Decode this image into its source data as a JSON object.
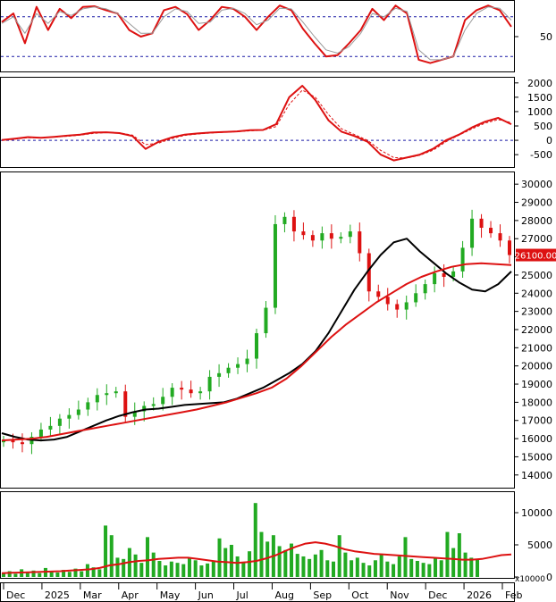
{
  "chart_data": {
    "type": "line",
    "panels": [
      {
        "id": "stochastic",
        "type": "line",
        "yticks": [
          "50"
        ],
        "dashed_levels": [
          80,
          20
        ],
        "ylim": [
          0,
          100
        ],
        "series": [
          {
            "color": "#dd1111",
            "values": [
              72,
              85,
              40,
              95,
              60,
              92,
              78,
              95,
              96,
              90,
              85,
              60,
              50,
              55,
              90,
              95,
              84,
              60,
              75,
              95,
              92,
              80,
              60,
              80,
              97,
              90,
              62,
              40,
              20,
              22,
              40,
              60,
              92,
              75,
              97,
              85,
              15,
              10,
              15,
              20,
              75,
              90,
              97,
              90,
              65
            ]
          },
          {
            "color": "#999999",
            "values": [
              70,
              80,
              55,
              85,
              70,
              88,
              82,
              92,
              95,
              92,
              85,
              70,
              55,
              55,
              80,
              92,
              88,
              70,
              72,
              90,
              93,
              85,
              68,
              75,
              93,
              92,
              72,
              50,
              30,
              25,
              35,
              55,
              85,
              80,
              93,
              88,
              30,
              15,
              15,
              20,
              60,
              85,
              95,
              93,
              75
            ]
          }
        ]
      },
      {
        "id": "macd",
        "type": "line",
        "yticks": [
          "2000",
          "1500",
          "1000",
          "500",
          "0",
          "-500"
        ],
        "ylim": [
          -900,
          2150
        ],
        "zero_line": 0,
        "series": [
          {
            "color": "#dd1111",
            "values": [
              10,
              60,
              110,
              90,
              120,
              160,
              200,
              270,
              280,
              250,
              150,
              -300,
              -50,
              100,
              200,
              240,
              270,
              290,
              310,
              350,
              360,
              560,
              1500,
              1900,
              1400,
              700,
              300,
              150,
              -50,
              -500,
              -700,
              -600,
              -500,
              -300,
              0,
              200,
              450,
              650,
              780,
              560
            ]
          },
          {
            "color": "#dd1111",
            "dashed": true,
            "values": [
              0,
              40,
              90,
              90,
              110,
              140,
              180,
              240,
              270,
              260,
              180,
              -150,
              -100,
              60,
              170,
              220,
              255,
              280,
              300,
              330,
              350,
              480,
              1250,
              1750,
              1500,
              900,
              400,
              200,
              0,
              -350,
              -600,
              -620,
              -520,
              -350,
              -50,
              180,
              400,
              600,
              720,
              620
            ]
          }
        ]
      },
      {
        "id": "price",
        "type": "bar",
        "yticks": [
          "30000",
          "29000",
          "28000",
          "27000",
          "26000",
          "25000",
          "24000",
          "23000",
          "22000",
          "21000",
          "20000",
          "19000",
          "18000",
          "17000",
          "16000",
          "15000",
          "14000"
        ],
        "ylim": [
          13400,
          30500
        ],
        "last_price_label": "26100.00",
        "x": [
          0,
          10,
          20,
          30,
          40,
          50,
          60,
          70,
          80,
          90,
          100,
          110,
          120,
          130,
          140,
          150,
          160,
          170,
          180,
          190,
          200,
          210,
          220,
          230,
          240,
          250,
          260,
          270,
          280,
          290,
          300,
          310,
          320,
          330,
          340,
          350,
          360,
          370,
          380,
          390,
          400,
          410,
          420,
          430,
          440,
          450,
          460,
          470,
          480,
          490,
          500,
          510,
          520,
          530,
          540
        ],
        "close": [
          15900,
          15800,
          15700,
          16100,
          16500,
          16700,
          17100,
          17300,
          17600,
          18000,
          18400,
          18500,
          18600,
          17200,
          17500,
          17800,
          17900,
          18300,
          18800,
          18700,
          18500,
          18600,
          19400,
          19600,
          19900,
          20100,
          20400,
          21800,
          23200,
          27800,
          28200,
          27400,
          27200,
          26900,
          27300,
          27000,
          27100,
          27400,
          26200,
          24100,
          23800,
          23400,
          23100,
          23500,
          24000,
          24500,
          25100,
          24900,
          25200,
          26500,
          28100,
          27600,
          27300,
          26900,
          26100
        ],
        "ma_black": [
          16300,
          16100,
          15950,
          15900,
          15950,
          16100,
          16400,
          16700,
          17000,
          17250,
          17450,
          17600,
          17650,
          17750,
          17850,
          17900,
          17950,
          18000,
          18200,
          18500,
          18800,
          19200,
          19600,
          20100,
          20800,
          21800,
          23000,
          24200,
          25200,
          26100,
          26800,
          27000,
          26300,
          25700,
          25100,
          24600,
          24200,
          24100,
          24500,
          25200
        ],
        "ma_red": [
          15900,
          15950,
          16000,
          16100,
          16250,
          16400,
          16550,
          16700,
          16850,
          17000,
          17150,
          17300,
          17450,
          17600,
          17800,
          18000,
          18250,
          18500,
          18800,
          19300,
          20000,
          20800,
          21600,
          22300,
          22900,
          23500,
          24000,
          24500,
          24900,
          25200,
          25450,
          25600,
          25650,
          25600,
          25550
        ]
      },
      {
        "id": "volume",
        "type": "bar",
        "yticks": [
          "10000",
          "5000",
          "0"
        ],
        "multiplier_label": "x10000",
        "ylim": [
          0,
          12500
        ],
        "values": [
          600,
          900,
          500,
          1200,
          800,
          1000,
          600,
          1400,
          900,
          700,
          1100,
          800,
          1300,
          900,
          2000,
          1500,
          1200,
          8000,
          6500,
          3000,
          2800,
          4500,
          3500,
          2200,
          6200,
          3800,
          2500,
          1800,
          2400,
          2200,
          2000,
          3000,
          2600,
          1800,
          2100,
          2500,
          6000,
          4500,
          5000,
          3200,
          2200,
          4000,
          11500,
          7000,
          5500,
          6500,
          4800,
          4200,
          5200,
          3600,
          3200,
          2800,
          3500,
          4200,
          2600,
          2400,
          6500,
          3800,
          2600,
          3000,
          2200,
          1800,
          2600,
          3400,
          2400,
          2000,
          3200,
          6200,
          2800,
          2500,
          2200,
          2000,
          3000,
          2600,
          7000,
          4500,
          6800,
          3800,
          3000,
          2800
        ],
        "ma_values": [
          600,
          650,
          700,
          750,
          800,
          850,
          900,
          1000,
          1100,
          1200,
          1400,
          1800,
          2000,
          2300,
          2500,
          2600,
          2800,
          2900,
          3000,
          3000,
          2800,
          2600,
          2400,
          2300,
          2200,
          2300,
          2500,
          2900,
          3400,
          4100,
          4700,
          5200,
          5400,
          5200,
          4800,
          4300,
          4000,
          3800,
          3600,
          3500,
          3400,
          3300,
          3200,
          3100,
          3000,
          2900,
          2800,
          2700,
          2700,
          2800,
          3100,
          3400,
          3500
        ]
      }
    ],
    "x_tick_labels": [
      "Dec",
      "2025",
      "Mar",
      "Apr",
      "May",
      "Jun",
      "Jul",
      "Aug",
      "Sep",
      "Oct",
      "Nov",
      "Dec",
      "2026",
      "Feb"
    ]
  },
  "colors": {
    "up_candle": "#22aa22",
    "down_candle": "#dd1111",
    "ma_black": "#000000",
    "ma_red": "#dd1111",
    "level_line": "#1a1aa6",
    "price_tag_bg": "#dd1111"
  }
}
